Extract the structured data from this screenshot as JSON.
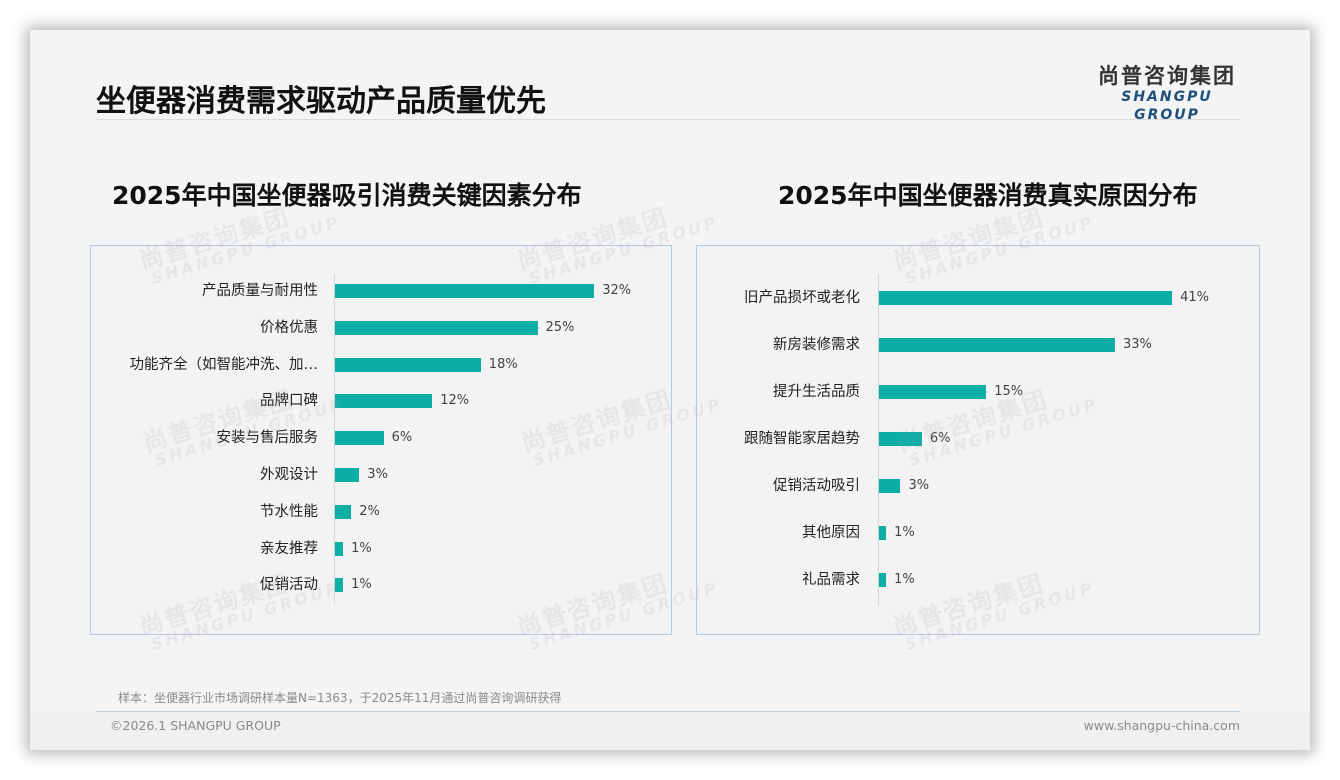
{
  "header": {
    "title": "坐便器消费需求驱动产品质量优先",
    "logo_cn": "尚普咨询集团",
    "logo_en": "SHANGPU GROUP"
  },
  "watermark": {
    "cn": "尚普咨询集团",
    "en": "SHANGPU GROUP"
  },
  "footer": {
    "note": "样本：坐便器行业市场调研样本量N=1363，于2025年11月通过尚普咨询调研获得",
    "copyright": "©2026.1 SHANGPU GROUP",
    "website": "www.shangpu-china.com"
  },
  "colors": {
    "bar": "#0aaea5",
    "logo_en": "#1d4f7c",
    "panel_border": "#b8c8dc"
  },
  "chart_data": [
    {
      "type": "bar",
      "orientation": "horizontal",
      "title": "2025年中国坐便器吸引消费关键因素分布",
      "categories": [
        "产品质量与耐用性",
        "价格优惠",
        "功能齐全（如智能冲洗、加…",
        "品牌口碑",
        "安装与售后服务",
        "外观设计",
        "节水性能",
        "亲友推荐",
        "促销活动"
      ],
      "values": [
        32,
        25,
        18,
        12,
        6,
        3,
        2,
        1,
        1
      ],
      "labels": [
        "32%",
        "25%",
        "18%",
        "12%",
        "6%",
        "3%",
        "2%",
        "1%",
        "1%"
      ],
      "unit": "%",
      "xlabel": "",
      "ylabel": "",
      "grid": false,
      "legend": "none"
    },
    {
      "type": "bar",
      "orientation": "horizontal",
      "title": "2025年中国坐便器消费真实原因分布",
      "categories": [
        "旧产品损坏或老化",
        "新房装修需求",
        "提升生活品质",
        "跟随智能家居趋势",
        "促销活动吸引",
        "其他原因",
        "礼品需求"
      ],
      "values": [
        41,
        33,
        15,
        6,
        3,
        1,
        1
      ],
      "labels": [
        "41%",
        "33%",
        "15%",
        "6%",
        "3%",
        "1%",
        "1%"
      ],
      "unit": "%",
      "xlabel": "",
      "ylabel": "",
      "grid": false,
      "legend": "none"
    }
  ]
}
